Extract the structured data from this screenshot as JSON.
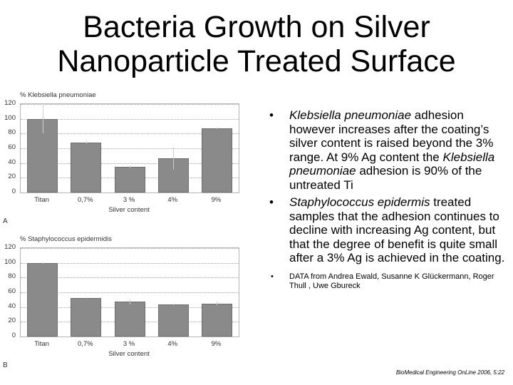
{
  "slide": {
    "title_line1": "Bacteria Growth on Silver",
    "title_line2": "Nanoparticle Treated Surface"
  },
  "bullets": [
    {
      "italic_lead": "Klebsiella pneumoniae",
      "text": "adhesion however increases after the coating’s silver content is raised beyond the 3% range. At 9% Ag content the",
      "italic_mid": "Klebsiella pneumoniae",
      "text_end": "adhesion is 90% of the untreated Ti"
    },
    {
      "italic_lead": "Staphylococcus epidermis",
      "text": "treated samples that the adhesion continues to decline with increasing Ag content, but that the degree of benefit is quite small after a 3% Ag is achieved in the coating."
    }
  ],
  "source_note": "DATA from Andrea Ewald, Susanne K Glückermann, Roger Thull , Uwe Gbureck",
  "citation": "BioMedical Engineering OnLine 2006, 5:22",
  "chart_data": [
    {
      "type": "bar",
      "panel": "A",
      "title": "% Klebsiella pneumoniae",
      "xlabel": "Silver content",
      "ylabel": "% Klebsiella pneumoniae",
      "categories": [
        "Titan",
        "0,7%",
        "3 %",
        "4%",
        "9%"
      ],
      "values": [
        100,
        68,
        35,
        46,
        87
      ],
      "errors": [
        20,
        2,
        2,
        15,
        1
      ],
      "yticks": [
        "0",
        "20",
        "40",
        "60",
        "80",
        "100",
        "120"
      ],
      "ylim": [
        0,
        120
      ],
      "grid": true,
      "bar_color": "#8a8a8a"
    },
    {
      "type": "bar",
      "panel": "B",
      "title": "% Staphylococcus epidermidis",
      "xlabel": "Silver content",
      "ylabel": "% Staphylococcus epidermidis",
      "categories": [
        "Titan",
        "0,7%",
        "3 %",
        "4%",
        "9%"
      ],
      "values": [
        100,
        52,
        47,
        44,
        45
      ],
      "errors": [
        1,
        1,
        3,
        1,
        2
      ],
      "yticks": [
        "0",
        "20",
        "40",
        "60",
        "80",
        "100",
        "120"
      ],
      "ylim": [
        0,
        120
      ],
      "grid": true,
      "bar_color": "#8a8a8a"
    }
  ]
}
